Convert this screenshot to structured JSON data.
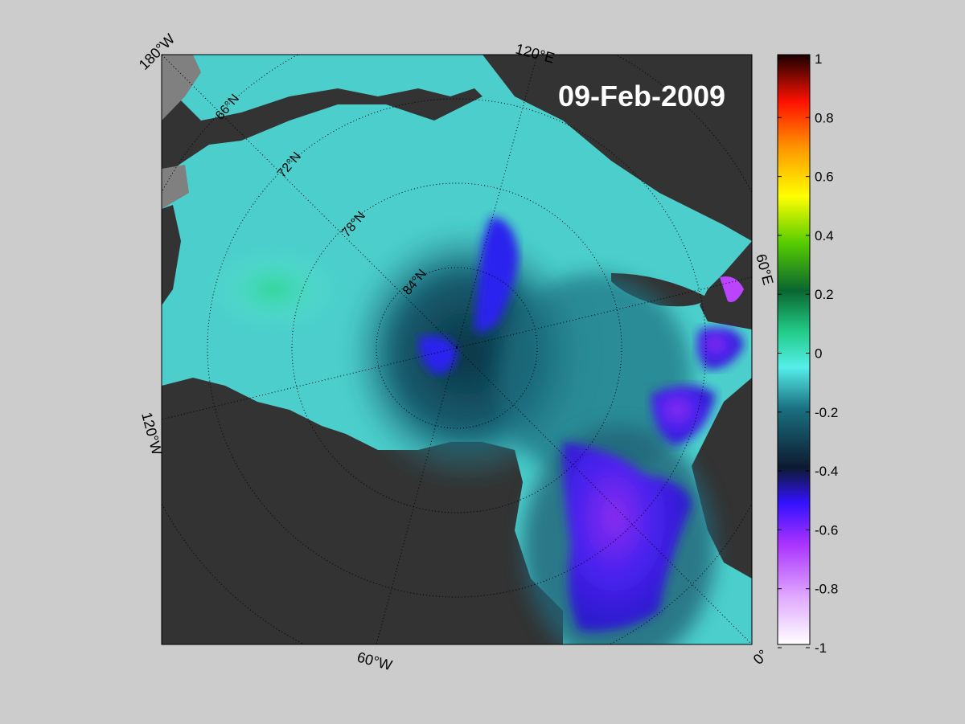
{
  "date_label": "09-Feb-2009",
  "meridian_labels": {
    "lon_180w": "180°W",
    "lon_120e": "120°E",
    "lon_60e": "60°E",
    "lon_0": "0°",
    "lon_60w": "60°W",
    "lon_120w": "120°W"
  },
  "parallel_labels": {
    "lat_66": "66°N",
    "lat_72": "72°N",
    "lat_78": "78°N",
    "lat_84": "84°N"
  },
  "colorbar": {
    "ticks": [
      "1",
      "0.8",
      "0.6",
      "0.4",
      "0.2",
      "0",
      "-0.2",
      "-0.4",
      "-0.6",
      "-0.8",
      "-1"
    ],
    "min": -1,
    "max": 1,
    "colors": [
      "#ffffff",
      "#cc66ff",
      "#8800ff",
      "#2222ff",
      "#0d2a3a",
      "#1d7f8a",
      "#50e8e0",
      "#22cc88",
      "#108838",
      "#66cc00",
      "#ffff00",
      "#ff9900",
      "#ff2200",
      "#990000",
      "#220000"
    ]
  },
  "colors": {
    "background": "#cccccc",
    "land": "#333333",
    "coast_fill": "#808080",
    "ocean_base": "#49c9c8",
    "grid_line": "#000000"
  }
}
